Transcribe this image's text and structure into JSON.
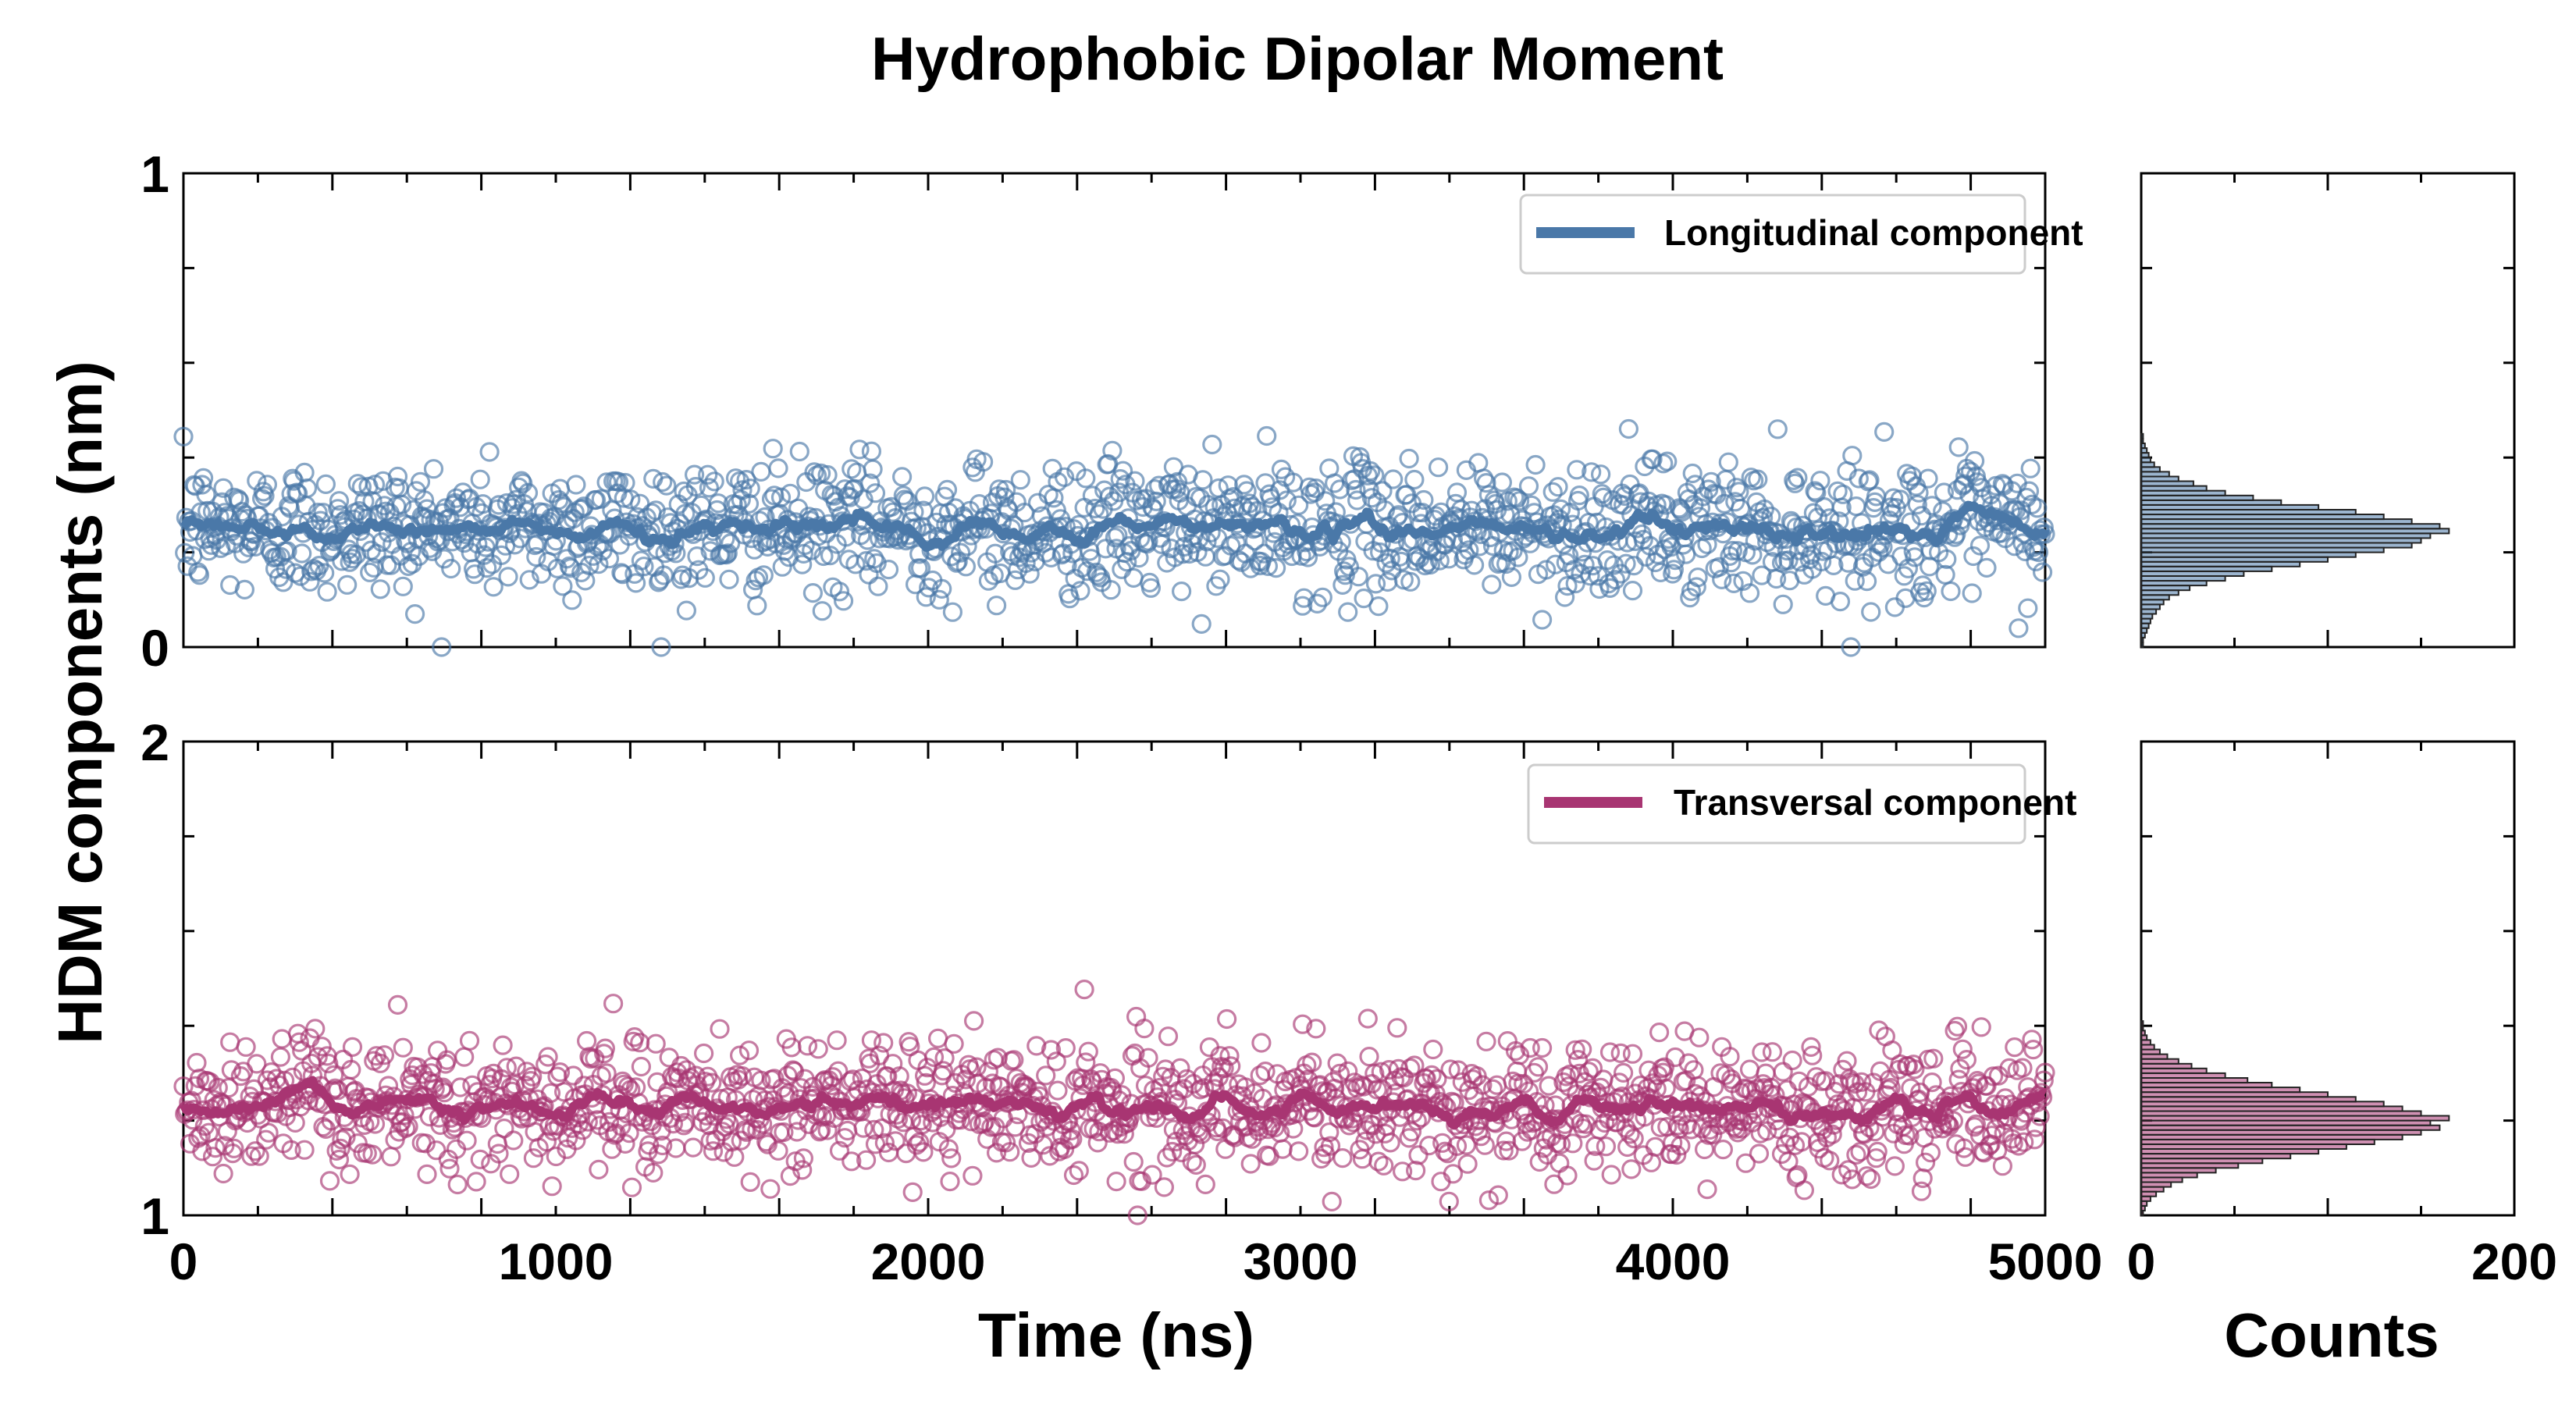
{
  "chart_data": [
    {
      "type": "scatter",
      "panel": "top-left",
      "title": "Hydrophobic Dipolar Moment",
      "xlabel": "",
      "ylabel": "HDM components (nm)",
      "xlim": [
        0,
        5000
      ],
      "ylim": [
        0,
        1
      ],
      "yticks": [
        "0",
        "1"
      ],
      "grid": false,
      "legend_position": "top-right",
      "series": [
        {
          "name": "Longitudinal component",
          "color": "#4a78a8",
          "marker": "open-circle",
          "line_style": "moving-average",
          "mean": 0.25,
          "spread": 0.07,
          "x_range": [
            0,
            5000
          ],
          "n_points_approx": 1400
        }
      ]
    },
    {
      "type": "scatter",
      "panel": "bottom-left",
      "xlabel": "Time (ns)",
      "ylabel": "HDM components (nm)",
      "xlim": [
        0,
        5000
      ],
      "ylim": [
        1,
        2
      ],
      "xticks": [
        "0",
        "1000",
        "2000",
        "3000",
        "4000",
        "5000"
      ],
      "yticks": [
        "1",
        "2"
      ],
      "grid": false,
      "legend_position": "top-right",
      "series": [
        {
          "name": "Transversal component",
          "color": "#a83572",
          "marker": "open-circle",
          "line_style": "moving-average",
          "mean": 1.23,
          "spread": 0.07,
          "x_range": [
            0,
            5000
          ],
          "n_points_approx": 1400
        }
      ]
    },
    {
      "type": "bar",
      "orientation": "horizontal",
      "panel": "top-right",
      "xlabel": "",
      "xlim": [
        0,
        200
      ],
      "ylim": [
        0,
        1
      ],
      "color": "#4a78a8",
      "bin_width": 0.01,
      "bins_start": 0.0,
      "counts": [
        1,
        1,
        2,
        3,
        4,
        5,
        6,
        8,
        10,
        12,
        15,
        20,
        26,
        35,
        45,
        55,
        70,
        85,
        100,
        115,
        130,
        145,
        150,
        155,
        165,
        160,
        145,
        130,
        115,
        95,
        75,
        60,
        45,
        35,
        28,
        20,
        15,
        10,
        7,
        5,
        4,
        3,
        2,
        1,
        1
      ]
    },
    {
      "type": "bar",
      "orientation": "horizontal",
      "panel": "bottom-right",
      "xlabel": "Counts",
      "xlim": [
        0,
        200
      ],
      "xticks": [
        "0",
        "200"
      ],
      "ylim": [
        1,
        2
      ],
      "color": "#a83572",
      "bin_width": 0.01,
      "bins_start": 1.0,
      "counts": [
        1,
        2,
        3,
        5,
        8,
        12,
        16,
        22,
        30,
        40,
        52,
        65,
        80,
        95,
        110,
        125,
        140,
        150,
        160,
        155,
        165,
        150,
        140,
        130,
        115,
        100,
        85,
        70,
        57,
        45,
        35,
        27,
        20,
        14,
        10,
        7,
        5,
        3,
        2,
        1,
        1
      ]
    }
  ]
}
